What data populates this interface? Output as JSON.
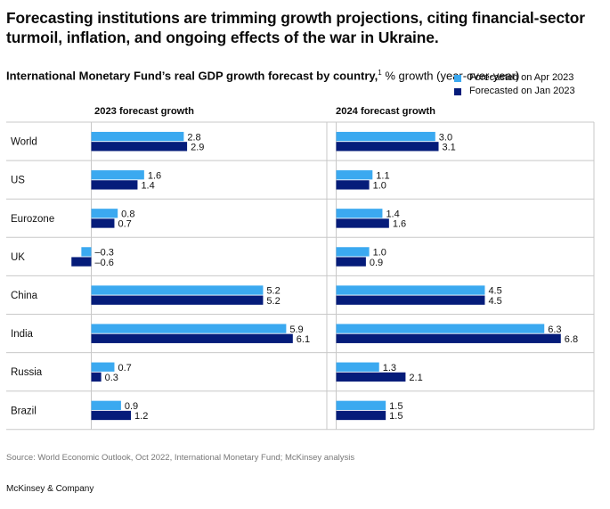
{
  "headline": "Forecasting institutions are trimming growth projections, citing financial-sector turmoil, inflation, and ongoing effects of the war in Ukraine.",
  "subtitle_bold": "International Monetary Fund’s real GDP growth forecast by country,",
  "subtitle_sup": "1",
  "subtitle_rest": " % growth (year-over-year)",
  "source": "Source: World Economic Outlook, Oct 2022, International Monetary Fund; McKinsey analysis",
  "brand": "McKinsey & Company",
  "colors": {
    "apr": "#3ba9f0",
    "jan": "#051c7a",
    "grid": "#c8c8c8"
  },
  "chart_data": {
    "type": "bar",
    "orientation": "horizontal",
    "categories": [
      "World",
      "US",
      "Eurozone",
      "UK",
      "China",
      "India",
      "Russia",
      "Brazil"
    ],
    "legend": [
      "Forecasted on Apr 2023",
      "Forecasted on Jan 2023"
    ],
    "legend_placement": "top-right",
    "panels": [
      {
        "title": "2023 forecast growth",
        "series": [
          {
            "name": "Forecasted on Apr 2023",
            "values": [
              2.8,
              1.6,
              0.8,
              -0.3,
              5.2,
              5.9,
              0.7,
              0.9
            ],
            "labels": [
              "2.8",
              "1.6",
              "0.8",
              "–0.3",
              "5.2",
              "5.9",
              "0.7",
              "0.9"
            ]
          },
          {
            "name": "Forecasted on Jan 2023",
            "values": [
              2.9,
              1.4,
              0.7,
              -0.6,
              5.2,
              6.1,
              0.3,
              1.2
            ],
            "labels": [
              "2.9",
              "1.4",
              "0.7",
              "–0.6",
              "5.2",
              "6.1",
              "0.3",
              "1.2"
            ]
          }
        ]
      },
      {
        "title": "2024 forecast growth",
        "series": [
          {
            "name": "Forecasted on Apr 2023",
            "values": [
              3.0,
              1.1,
              1.4,
              1.0,
              4.5,
              6.3,
              1.3,
              1.5
            ],
            "labels": [
              "3.0",
              "1.1",
              "1.4",
              "1.0",
              "4.5",
              "6.3",
              "1.3",
              "1.5"
            ]
          },
          {
            "name": "Forecasted on Jan 2023",
            "values": [
              3.1,
              1.0,
              1.6,
              0.9,
              4.5,
              6.8,
              2.1,
              1.5
            ],
            "labels": [
              "3.1",
              "1.0",
              "1.6",
              "0.9",
              "4.5",
              "6.8",
              "2.1",
              "1.5"
            ]
          }
        ]
      }
    ],
    "grid": true
  }
}
